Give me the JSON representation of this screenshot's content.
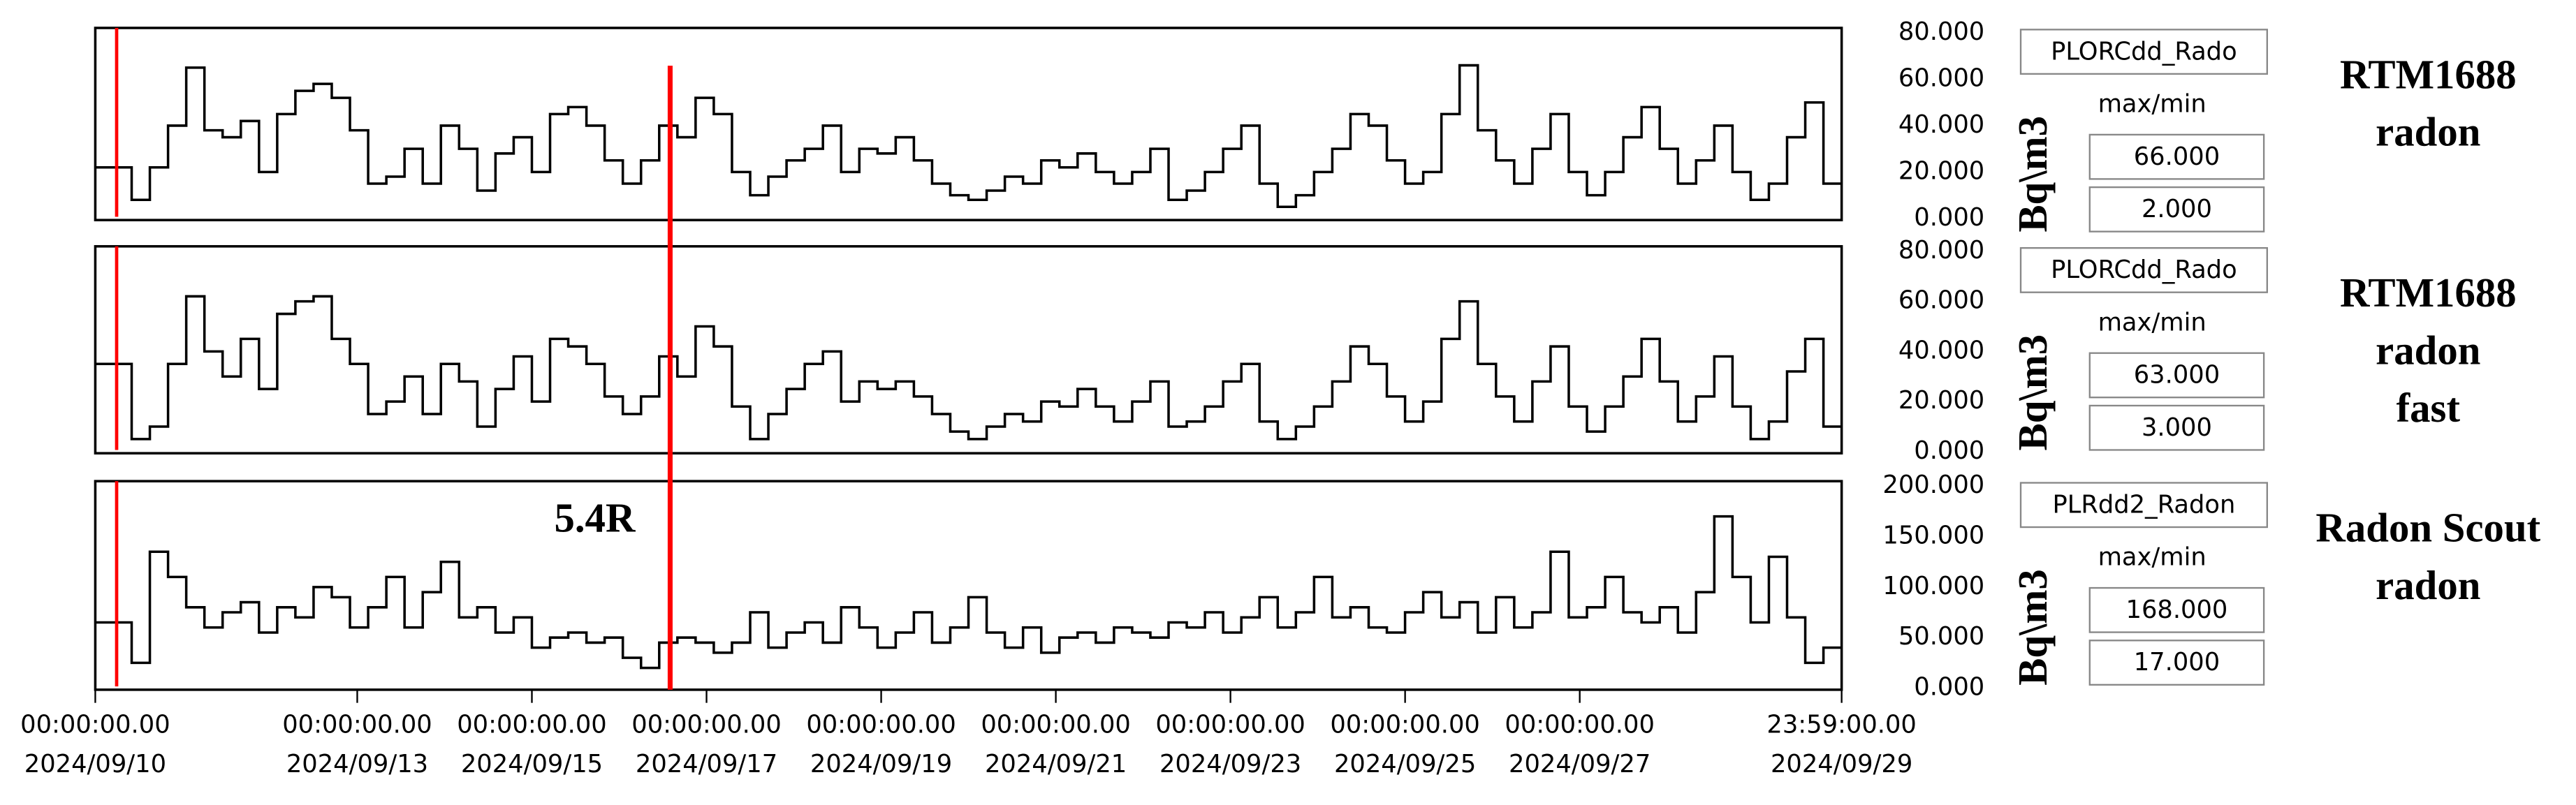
{
  "chart_data": [
    {
      "type": "step",
      "color": "#000000",
      "ylim": [
        0,
        80
      ],
      "yticks": [
        {
          "value": 0,
          "label": "0.000"
        },
        {
          "value": 20,
          "label": "20.000"
        },
        {
          "value": 40,
          "label": "40.000"
        },
        {
          "value": 60,
          "label": "60.000"
        },
        {
          "value": 80,
          "label": "80.000"
        }
      ],
      "values": [
        22,
        22,
        8,
        22,
        40,
        65,
        38,
        35,
        42,
        20,
        45,
        55,
        58,
        52,
        38,
        15,
        18,
        30,
        15,
        40,
        30,
        12,
        28,
        35,
        20,
        45,
        48,
        40,
        25,
        15,
        25,
        40,
        35,
        52,
        45,
        20,
        10,
        18,
        25,
        30,
        40,
        20,
        30,
        28,
        35,
        25,
        15,
        10,
        8,
        12,
        18,
        15,
        25,
        22,
        28,
        20,
        15,
        20,
        30,
        8,
        12,
        20,
        30,
        40,
        15,
        5,
        10,
        20,
        30,
        45,
        40,
        25,
        15,
        20,
        45,
        66,
        38,
        25,
        15,
        30,
        45,
        20,
        10,
        20,
        35,
        48,
        30,
        15,
        25,
        40,
        20,
        8,
        15,
        35,
        50,
        15
      ]
    },
    {
      "type": "step",
      "color": "#000000",
      "ylim": [
        0,
        80
      ],
      "yticks": [
        {
          "value": 0,
          "label": "0.000"
        },
        {
          "value": 20,
          "label": "20.000"
        },
        {
          "value": 40,
          "label": "40.000"
        },
        {
          "value": 60,
          "label": "60.000"
        },
        {
          "value": 80,
          "label": "80.000"
        }
      ],
      "values": [
        35,
        35,
        5,
        10,
        35,
        62,
        40,
        30,
        45,
        25,
        55,
        60,
        62,
        45,
        35,
        15,
        20,
        30,
        15,
        35,
        28,
        10,
        25,
        38,
        20,
        45,
        42,
        35,
        22,
        15,
        22,
        38,
        30,
        50,
        42,
        18,
        5,
        15,
        25,
        35,
        40,
        20,
        28,
        25,
        28,
        22,
        15,
        8,
        5,
        10,
        15,
        12,
        20,
        18,
        25,
        18,
        12,
        20,
        28,
        10,
        12,
        18,
        28,
        35,
        12,
        5,
        10,
        18,
        28,
        42,
        35,
        22,
        12,
        20,
        45,
        60,
        35,
        22,
        12,
        28,
        42,
        18,
        8,
        18,
        30,
        45,
        28,
        12,
        22,
        38,
        18,
        5,
        12,
        32,
        45,
        10
      ]
    },
    {
      "type": "step",
      "color": "#000000",
      "ylim": [
        0,
        200
      ],
      "yticks": [
        {
          "value": 0,
          "label": "0.000"
        },
        {
          "value": 50,
          "label": "50.000"
        },
        {
          "value": 100,
          "label": "100.000"
        },
        {
          "value": 150,
          "label": "150.000"
        },
        {
          "value": 200,
          "label": "200.000"
        }
      ],
      "annotation": "5.4R",
      "values": [
        65,
        65,
        25,
        135,
        110,
        80,
        60,
        75,
        85,
        55,
        80,
        70,
        100,
        90,
        60,
        80,
        110,
        60,
        95,
        125,
        70,
        80,
        55,
        70,
        40,
        50,
        55,
        45,
        50,
        30,
        20,
        45,
        50,
        45,
        35,
        45,
        75,
        40,
        55,
        65,
        45,
        80,
        60,
        40,
        55,
        75,
        45,
        60,
        90,
        55,
        40,
        60,
        35,
        50,
        55,
        45,
        60,
        55,
        50,
        65,
        60,
        75,
        55,
        70,
        90,
        60,
        75,
        110,
        70,
        80,
        60,
        55,
        75,
        95,
        70,
        85,
        55,
        90,
        60,
        75,
        135,
        70,
        80,
        110,
        75,
        65,
        80,
        55,
        95,
        170,
        110,
        65,
        130,
        70,
        25,
        40
      ]
    }
  ],
  "x_axis": {
    "xlim": [
      "2024-09-10T00:00:00Z",
      "2024-09-29T23:59:00Z"
    ],
    "xticks": [
      {
        "value": "2024-09-10T00:00:00Z",
        "label": [
          "00:00:00.00",
          "2024/09/10"
        ]
      },
      {
        "value": "2024-09-13T00:00:00Z",
        "label": [
          "00:00:00.00",
          "2024/09/13"
        ]
      },
      {
        "value": "2024-09-15T00:00:00Z",
        "label": [
          "00:00:00.00",
          "2024/09/15"
        ]
      },
      {
        "value": "2024-09-17T00:00:00Z",
        "label": [
          "00:00:00.00",
          "2024/09/17"
        ]
      },
      {
        "value": "2024-09-19T00:00:00Z",
        "label": [
          "00:00:00.00",
          "2024/09/19"
        ]
      },
      {
        "value": "2024-09-21T00:00:00Z",
        "label": [
          "00:00:00.00",
          "2024/09/21"
        ]
      },
      {
        "value": "2024-09-23T00:00:00Z",
        "label": [
          "00:00:00.00",
          "2024/09/23"
        ]
      },
      {
        "value": "2024-09-25T00:00:00Z",
        "label": [
          "00:00:00.00",
          "2024/09/25"
        ]
      },
      {
        "value": "2024-09-27T00:00:00Z",
        "label": [
          "00:00:00.00",
          "2024/09/27"
        ]
      },
      {
        "value": "2024-09-29T23:59:00Z",
        "label": [
          "23:59:00.00",
          "2024/09/29"
        ]
      }
    ]
  },
  "cursor": {
    "time": "2024-09-16T14:00:00Z",
    "color": "#ff0000"
  },
  "panels": [
    {
      "channel": "PLORCdd_Rado",
      "stat_label": "max/min",
      "max": "66.000",
      "min": "2.000",
      "unit": "Bq\\m3",
      "title": [
        "RTM1688",
        "radon"
      ]
    },
    {
      "channel": "PLORCdd_Rado",
      "stat_label": "max/min",
      "max": "63.000",
      "min": "3.000",
      "unit": "Bq\\m3",
      "title": [
        "RTM1688",
        "radon",
        "fast"
      ]
    },
    {
      "channel": "PLRdd2_Radon",
      "stat_label": "max/min",
      "max": "168.000",
      "min": "17.000",
      "unit": "Bq\\m3",
      "title": [
        "Radon Scout",
        "radon"
      ]
    }
  ]
}
